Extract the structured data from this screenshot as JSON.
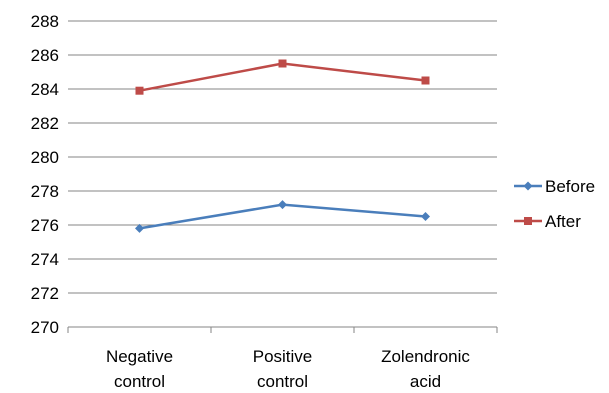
{
  "chart_data": {
    "type": "line",
    "categories": [
      [
        "Negative",
        "control"
      ],
      [
        "Positive",
        "control"
      ],
      [
        "Zolendronic",
        "acid"
      ]
    ],
    "series": [
      {
        "name": "Before",
        "values": [
          275.8,
          277.2,
          276.5
        ],
        "color": "#4a7ebb",
        "marker": "diamond"
      },
      {
        "name": "After",
        "values": [
          283.9,
          285.5,
          284.5
        ],
        "color": "#be4b48",
        "marker": "square"
      }
    ],
    "ylim": [
      270,
      288
    ],
    "ytick_step": 2,
    "yticks": [
      "270",
      "272",
      "274",
      "276",
      "278",
      "280",
      "282",
      "284",
      "286",
      "288"
    ],
    "grid": true,
    "legend": "right"
  }
}
